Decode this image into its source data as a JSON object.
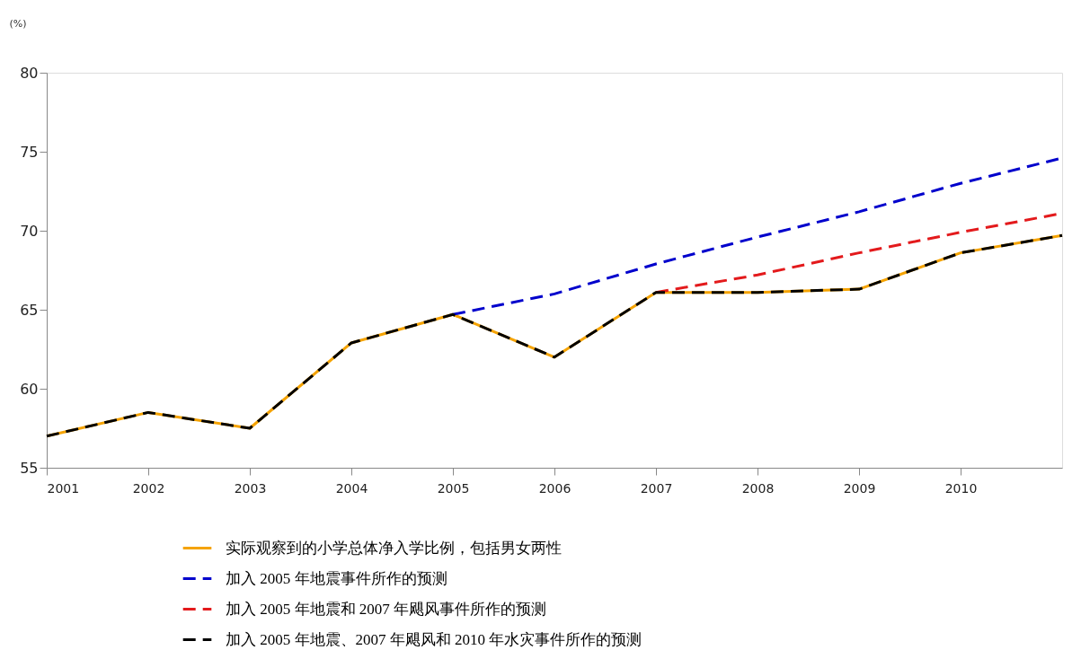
{
  "chart_data": {
    "type": "line",
    "ylabel": "(%)",
    "x": [
      2001,
      2002,
      2003,
      2004,
      2005,
      2006,
      2007,
      2008,
      2009,
      2010,
      2011
    ],
    "xlim": [
      2001,
      2011
    ],
    "xticks": [
      2001,
      2002,
      2003,
      2004,
      2005,
      2006,
      2007,
      2008,
      2009,
      2010
    ],
    "ylim": [
      55,
      80
    ],
    "yticks": [
      55,
      60,
      65,
      70,
      75,
      80
    ],
    "grid": false,
    "marker": "none",
    "legend": "bottom",
    "series": [
      {
        "name": "实际观察到的小学总体净入学比例，包括男女两性",
        "color": "#f5a300",
        "line_style": "solid",
        "values": [
          57.0,
          58.5,
          57.5,
          62.9,
          64.7,
          62.0,
          66.1,
          66.1,
          66.3,
          68.6,
          69.7
        ]
      },
      {
        "name": "加入 2005 年地震事件所作的预测",
        "color": "#0000cc",
        "line_style": "dashed",
        "values": [
          null,
          null,
          null,
          null,
          64.7,
          66.0,
          67.9,
          69.6,
          71.2,
          73.0,
          74.6
        ]
      },
      {
        "name": "加入 2005 年地震和 2007 年飓风事件所作的预测",
        "color": "#e31a1c",
        "line_style": "dashed",
        "values": [
          null,
          null,
          null,
          null,
          null,
          null,
          66.1,
          67.2,
          68.6,
          69.9,
          71.1
        ]
      },
      {
        "name": "加入 2005 年地震、2007 年飓风和 2010 年水灾事件所作的预测",
        "color": "#000000",
        "line_style": "dashed",
        "values": [
          57.0,
          58.5,
          57.5,
          62.9,
          64.7,
          62.0,
          66.1,
          66.1,
          66.3,
          68.6,
          69.7
        ]
      }
    ]
  }
}
